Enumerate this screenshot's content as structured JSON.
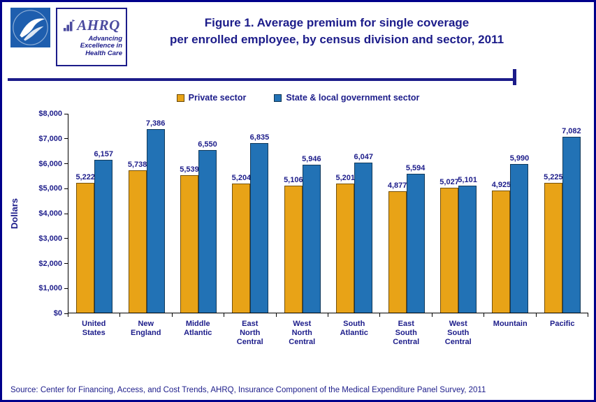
{
  "colors": {
    "navy": "#1C1C8A",
    "border": "#00008B",
    "hhs_blue": "#1E5EAE",
    "ahrq_purple": "#4B4B9F"
  },
  "header": {
    "title_line1": "Figure 1. Average premium for single coverage",
    "title_line2": "per enrolled employee, by census division and sector, 2011",
    "ahrq_logo_text": "AHRQ",
    "ahrq_tagline": "Advancing Excellence in Health Care"
  },
  "footer": {
    "source": "Source: Center for Financing, Access, and Cost Trends, AHRQ, Insurance Component of the Medical Expenditure Panel Survey, 2011"
  },
  "chart_data": {
    "type": "bar",
    "title": "Figure 1. Average premium for single coverage per enrolled employee, by census division and sector, 2011",
    "xlabel": "",
    "ylabel": "Dollars",
    "ylim": [
      0,
      8000
    ],
    "yticks": [
      0,
      1000,
      2000,
      3000,
      4000,
      5000,
      6000,
      7000,
      8000
    ],
    "ytick_labels": [
      "$0",
      "$1,000",
      "$2,000",
      "$3,000",
      "$4,000",
      "$5,000",
      "$6,000",
      "$7,000",
      "$8,000"
    ],
    "grid": false,
    "legend_position": "top",
    "categories": [
      "United States",
      "New England",
      "Middle Atlantic",
      "East North Central",
      "West North Central",
      "South Atlantic",
      "East South Central",
      "West South Central",
      "Mountain",
      "Pacific"
    ],
    "series": [
      {
        "name": "Private sector",
        "color": "#E8A317",
        "values": [
          5222,
          5738,
          5539,
          5204,
          5106,
          5201,
          4877,
          5027,
          4925,
          5225
        ]
      },
      {
        "name": "State & local government sector",
        "color": "#2272B5",
        "values": [
          6157,
          7386,
          6550,
          6835,
          5946,
          6047,
          5594,
          5101,
          5990,
          7082
        ]
      }
    ]
  }
}
